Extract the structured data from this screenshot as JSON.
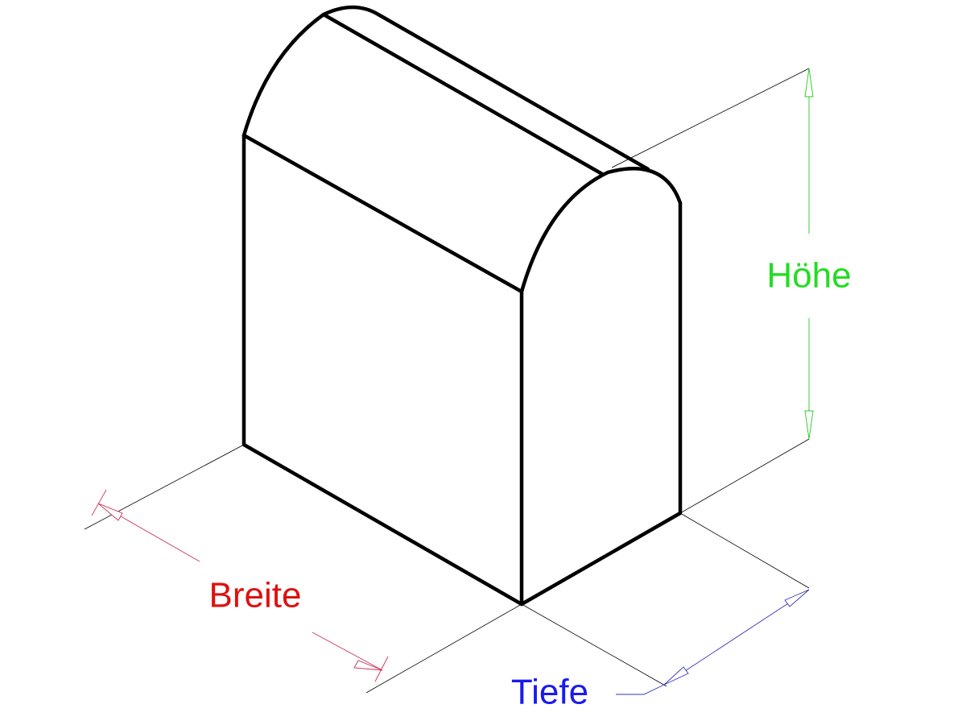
{
  "dimensions": {
    "height": "Höhe",
    "width": "Breite",
    "depth": "Tiefe"
  }
}
